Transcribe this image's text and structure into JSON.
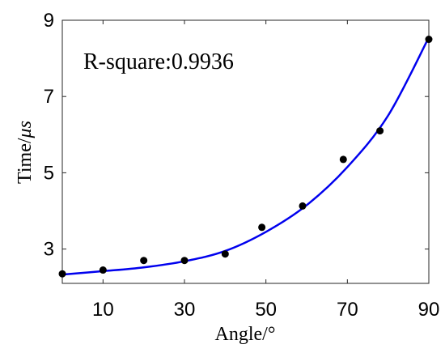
{
  "chart_data": {
    "type": "scatter",
    "xlabel": "Angle/°",
    "ylabel_prefix": "Time/",
    "ylabel_unit": "μs",
    "annotation": "R-square:0.9936",
    "xlim": [
      0,
      90
    ],
    "ylim": [
      2.1,
      9
    ],
    "xticks": [
      10,
      30,
      50,
      70,
      90
    ],
    "yticks": [
      3,
      5,
      7,
      9
    ],
    "grid": false,
    "series": [
      {
        "kind": "points",
        "color": "#000000",
        "x": [
          0,
          10,
          20,
          30,
          40,
          49,
          59,
          69,
          78,
          90
        ],
        "y": [
          2.35,
          2.45,
          2.7,
          2.7,
          2.87,
          3.57,
          4.13,
          5.35,
          6.1,
          8.5
        ]
      },
      {
        "kind": "fit-curve",
        "color": "#0000ee",
        "x": [
          0,
          10,
          20,
          30,
          40,
          50,
          60,
          70,
          80,
          90
        ],
        "y": [
          2.33,
          2.42,
          2.52,
          2.68,
          2.95,
          3.45,
          4.15,
          5.15,
          6.5,
          8.55
        ]
      }
    ]
  }
}
